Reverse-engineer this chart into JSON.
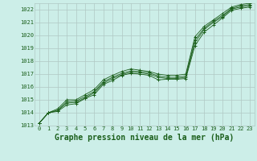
{
  "title": "Graphe pression niveau de la mer (hPa)",
  "x_labels": [
    "0",
    "1",
    "2",
    "3",
    "4",
    "5",
    "6",
    "7",
    "8",
    "9",
    "10",
    "11",
    "12",
    "13",
    "14",
    "15",
    "16",
    "17",
    "18",
    "19",
    "20",
    "21",
    "22",
    "23"
  ],
  "x_values": [
    0,
    1,
    2,
    3,
    4,
    5,
    6,
    7,
    8,
    9,
    10,
    11,
    12,
    13,
    14,
    15,
    16,
    17,
    18,
    19,
    20,
    21,
    22,
    23
  ],
  "series1": [
    1013.2,
    1014.0,
    1014.1,
    1014.6,
    1014.7,
    1015.1,
    1015.4,
    1016.2,
    1016.5,
    1016.9,
    1017.05,
    1017.0,
    1016.9,
    1016.55,
    1016.6,
    1016.6,
    1016.65,
    1019.2,
    1020.25,
    1020.8,
    1021.35,
    1021.95,
    1022.1,
    1022.2
  ],
  "series2": [
    1013.2,
    1014.0,
    1014.15,
    1014.75,
    1014.8,
    1015.15,
    1015.55,
    1016.3,
    1016.65,
    1016.95,
    1017.15,
    1017.1,
    1017.0,
    1016.75,
    1016.65,
    1016.65,
    1016.75,
    1019.45,
    1020.45,
    1021.0,
    1021.45,
    1022.05,
    1022.2,
    1022.3
  ],
  "series3": [
    1013.2,
    1014.0,
    1014.2,
    1014.85,
    1014.9,
    1015.25,
    1015.65,
    1016.4,
    1016.75,
    1017.05,
    1017.25,
    1017.2,
    1017.1,
    1016.85,
    1016.75,
    1016.75,
    1016.85,
    1019.65,
    1020.55,
    1021.1,
    1021.55,
    1022.1,
    1022.3,
    1022.4
  ],
  "series4": [
    1013.2,
    1014.0,
    1014.3,
    1015.0,
    1015.0,
    1015.4,
    1015.8,
    1016.55,
    1016.9,
    1017.2,
    1017.4,
    1017.3,
    1017.2,
    1017.0,
    1016.9,
    1016.9,
    1017.0,
    1019.9,
    1020.7,
    1021.2,
    1021.7,
    1022.2,
    1022.4,
    1022.5
  ],
  "ylim": [
    1013.0,
    1022.5
  ],
  "yticks": [
    1013,
    1014,
    1015,
    1016,
    1017,
    1018,
    1019,
    1020,
    1021,
    1022
  ],
  "line_color": "#1a5e1a",
  "bg_color": "#cceee8",
  "grid_color": "#b0c8c4",
  "title_color": "#1a5e1a",
  "title_fontsize": 7.0,
  "tick_fontsize": 5.0
}
